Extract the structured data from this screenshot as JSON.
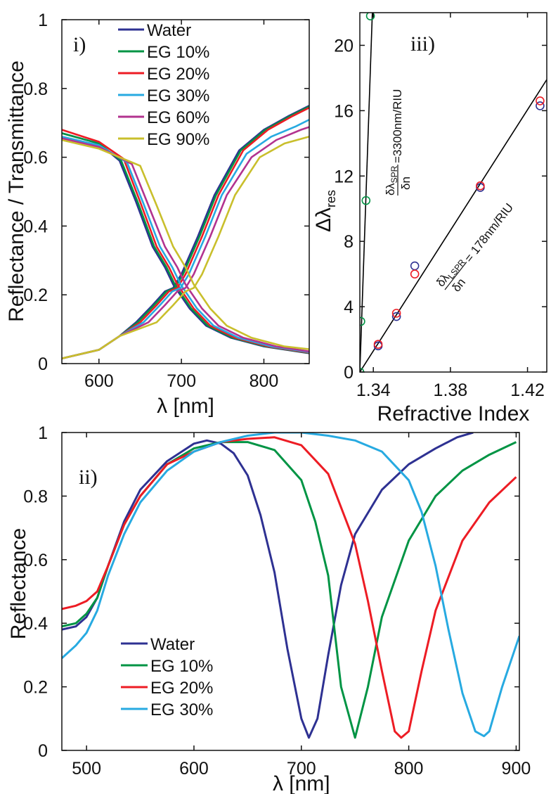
{
  "chart_data": [
    {
      "type": "line",
      "panel_label": "i)",
      "xlabel": "λ [nm]",
      "ylabel": "Reflectance / Transmittance",
      "xlim": [
        555,
        855
      ],
      "ylim": [
        0,
        1
      ],
      "xticks": [
        600,
        700,
        800
      ],
      "yticks": [
        0,
        0.2,
        0.4,
        0.6,
        0.8,
        1
      ],
      "ytick_labels": [
        "0",
        "0.2",
        "0.4",
        "0.6",
        "0.8",
        "1"
      ],
      "legend_position": "top-center",
      "series": [
        {
          "name": "Water",
          "color": "#2e3192",
          "shift": 0,
          "reflectance": [
            [
              555,
              0.67
            ],
            [
              600,
              0.64
            ],
            [
              625,
              0.59
            ],
            [
              645,
              0.47
            ],
            [
              665,
              0.34
            ],
            [
              680,
              0.28
            ],
            [
              690,
              0.23
            ],
            [
              710,
              0.16
            ],
            [
              730,
              0.11
            ],
            [
              760,
              0.075
            ],
            [
              800,
              0.05
            ],
            [
              855,
              0.03
            ]
          ],
          "transmittance": [
            [
              555,
              0.015
            ],
            [
              600,
              0.04
            ],
            [
              625,
              0.08
            ],
            [
              645,
              0.12
            ],
            [
              665,
              0.17
            ],
            [
              680,
              0.21
            ],
            [
              690,
              0.22
            ],
            [
              700,
              0.26
            ],
            [
              720,
              0.37
            ],
            [
              740,
              0.49
            ],
            [
              770,
              0.62
            ],
            [
              800,
              0.68
            ],
            [
              830,
              0.72
            ],
            [
              855,
              0.75
            ]
          ]
        },
        {
          "name": "EG 10%",
          "color": "#009444",
          "shift": 2,
          "reflectance": [
            [
              555,
              0.67
            ],
            [
              600,
              0.64
            ],
            [
              625,
              0.59
            ],
            [
              645,
              0.47
            ],
            [
              665,
              0.34
            ],
            [
              680,
              0.28
            ],
            [
              690,
              0.23
            ],
            [
              710,
              0.16
            ],
            [
              730,
              0.11
            ],
            [
              760,
              0.075
            ],
            [
              800,
              0.05
            ],
            [
              855,
              0.03
            ]
          ],
          "transmittance": [
            [
              555,
              0.015
            ],
            [
              600,
              0.04
            ],
            [
              625,
              0.08
            ],
            [
              645,
              0.12
            ],
            [
              665,
              0.17
            ],
            [
              680,
              0.21
            ],
            [
              690,
              0.22
            ],
            [
              700,
              0.26
            ],
            [
              720,
              0.37
            ],
            [
              740,
              0.49
            ],
            [
              770,
              0.62
            ],
            [
              800,
              0.68
            ],
            [
              830,
              0.72
            ],
            [
              855,
              0.75
            ]
          ]
        },
        {
          "name": "EG 20%",
          "color": "#ed1c24",
          "shift": 5,
          "reflectance": [
            [
              555,
              0.68
            ],
            [
              600,
              0.645
            ],
            [
              625,
              0.595
            ],
            [
              645,
              0.47
            ],
            [
              665,
              0.34
            ],
            [
              680,
              0.28
            ],
            [
              690,
              0.23
            ],
            [
              710,
              0.16
            ],
            [
              730,
              0.11
            ],
            [
              760,
              0.075
            ],
            [
              800,
              0.05
            ],
            [
              855,
              0.03
            ]
          ],
          "transmittance": [
            [
              555,
              0.015
            ],
            [
              600,
              0.04
            ],
            [
              625,
              0.08
            ],
            [
              645,
              0.12
            ],
            [
              665,
              0.17
            ],
            [
              680,
              0.21
            ],
            [
              690,
              0.22
            ],
            [
              700,
              0.26
            ],
            [
              720,
              0.37
            ],
            [
              740,
              0.49
            ],
            [
              770,
              0.62
            ],
            [
              800,
              0.68
            ],
            [
              830,
              0.72
            ],
            [
              855,
              0.75
            ]
          ]
        },
        {
          "name": "EG 30%",
          "color": "#27aae1",
          "shift": 9,
          "reflectance": [
            [
              555,
              0.66
            ],
            [
              600,
              0.635
            ],
            [
              625,
              0.585
            ],
            [
              645,
              0.465
            ],
            [
              665,
              0.34
            ],
            [
              680,
              0.28
            ],
            [
              690,
              0.23
            ],
            [
              710,
              0.16
            ],
            [
              730,
              0.11
            ],
            [
              760,
              0.075
            ],
            [
              800,
              0.05
            ],
            [
              855,
              0.03
            ]
          ],
          "transmittance": [
            [
              555,
              0.015
            ],
            [
              600,
              0.04
            ],
            [
              625,
              0.08
            ],
            [
              645,
              0.12
            ],
            [
              665,
              0.17
            ],
            [
              680,
              0.21
            ],
            [
              690,
              0.22
            ],
            [
              700,
              0.26
            ],
            [
              720,
              0.37
            ],
            [
              740,
              0.49
            ],
            [
              770,
              0.61
            ],
            [
              800,
              0.66
            ],
            [
              830,
              0.69
            ],
            [
              855,
              0.72
            ]
          ]
        },
        {
          "name": "EG 60%",
          "color": "#b2338f",
          "shift": 15,
          "reflectance": [
            [
              555,
              0.655
            ],
            [
              600,
              0.63
            ],
            [
              625,
              0.58
            ],
            [
              645,
              0.46
            ],
            [
              665,
              0.34
            ],
            [
              680,
              0.28
            ],
            [
              690,
              0.23
            ],
            [
              710,
              0.16
            ],
            [
              730,
              0.11
            ],
            [
              760,
              0.075
            ],
            [
              800,
              0.05
            ],
            [
              855,
              0.03
            ]
          ],
          "transmittance": [
            [
              555,
              0.015
            ],
            [
              600,
              0.04
            ],
            [
              625,
              0.08
            ],
            [
              645,
              0.12
            ],
            [
              665,
              0.17
            ],
            [
              680,
              0.21
            ],
            [
              690,
              0.22
            ],
            [
              700,
              0.26
            ],
            [
              720,
              0.37
            ],
            [
              740,
              0.49
            ],
            [
              770,
              0.6
            ],
            [
              800,
              0.65
            ],
            [
              830,
              0.68
            ],
            [
              855,
              0.7
            ]
          ]
        },
        {
          "name": "EG 90%",
          "color": "#c9bf2c",
          "shift": 25,
          "reflectance": [
            [
              555,
              0.65
            ],
            [
              600,
              0.625
            ],
            [
              625,
              0.575
            ],
            [
              645,
              0.46
            ],
            [
              665,
              0.34
            ],
            [
              680,
              0.28
            ],
            [
              690,
              0.23
            ],
            [
              710,
              0.16
            ],
            [
              730,
              0.11
            ],
            [
              760,
              0.075
            ],
            [
              800,
              0.05
            ],
            [
              855,
              0.035
            ]
          ],
          "transmittance": [
            [
              555,
              0.015
            ],
            [
              600,
              0.04
            ],
            [
              625,
              0.08
            ],
            [
              645,
              0.12
            ],
            [
              665,
              0.17
            ],
            [
              680,
              0.21
            ],
            [
              690,
              0.22
            ],
            [
              700,
              0.26
            ],
            [
              720,
              0.37
            ],
            [
              740,
              0.49
            ],
            [
              770,
              0.6
            ],
            [
              800,
              0.64
            ],
            [
              830,
              0.66
            ],
            [
              855,
              0.68
            ]
          ]
        }
      ]
    },
    {
      "type": "scatter",
      "panel_label": "iii)",
      "xlabel": "Refractive Index",
      "ylabel_main": "Δλ",
      "ylabel_sub": "res",
      "xlim": [
        1.333,
        1.43
      ],
      "ylim": [
        0,
        22
      ],
      "xticks": [
        1.34,
        1.38,
        1.42
      ],
      "yticks": [
        0,
        4,
        8,
        12,
        16,
        20
      ],
      "ytick_labels": [
        "0",
        "4",
        "8",
        "12",
        "16",
        "20"
      ],
      "annotations": [
        {
          "top": "δλ",
          "top_sub": "SPR",
          "bottom": "δn",
          "suffix": "=3300nm/RIU"
        },
        {
          "top": "δλ",
          "top_sub": "LSPR",
          "bottom": "δn",
          "suffix": "= 178nm/RIU"
        }
      ],
      "fit_lines": [
        {
          "color": "#000000",
          "points": [
            [
              1.333,
              0
            ],
            [
              1.3395,
              22
            ]
          ]
        },
        {
          "color": "#000000",
          "points": [
            [
              1.333,
              0
            ],
            [
              1.43,
              17.9
            ]
          ]
        }
      ],
      "series": [
        {
          "color": "#009444",
          "points": [
            [
              1.333,
              0
            ],
            [
              1.3335,
              3.1
            ],
            [
              1.3362,
              10.5
            ],
            [
              1.3385,
              21.8
            ]
          ]
        },
        {
          "color": "#2e3192",
          "points": [
            [
              1.3425,
              1.6
            ],
            [
              1.352,
              3.4
            ],
            [
              1.3615,
              6.5
            ],
            [
              1.3955,
              11.3
            ],
            [
              1.4265,
              16.3
            ]
          ]
        },
        {
          "color": "#ed1c24",
          "points": [
            [
              1.3425,
              1.7
            ],
            [
              1.352,
              3.6
            ],
            [
              1.3615,
              6.0
            ],
            [
              1.3955,
              11.4
            ],
            [
              1.4265,
              16.6
            ]
          ]
        }
      ]
    },
    {
      "type": "line",
      "panel_label": "ii)",
      "xlabel": "λ [nm]",
      "ylabel": "Reflectance",
      "xlim": [
        477,
        903
      ],
      "ylim": [
        0,
        1
      ],
      "xticks": [
        500,
        600,
        700,
        800,
        900
      ],
      "yticks": [
        0,
        0.2,
        0.4,
        0.6,
        0.8,
        1
      ],
      "ytick_labels": [
        "0",
        "0.2",
        "0.4",
        "0.6",
        "0.8",
        "1"
      ],
      "legend_position": "bottom-left",
      "series": [
        {
          "name": "Water",
          "color": "#2e3192",
          "x": [
            477,
            490,
            500,
            510,
            520,
            535,
            550,
            575,
            600,
            612,
            625,
            637,
            650,
            662,
            675,
            687,
            700,
            707,
            715,
            725,
            737,
            750,
            775,
            800,
            825,
            845,
            860
          ],
          "y": [
            0.38,
            0.39,
            0.42,
            0.48,
            0.58,
            0.72,
            0.82,
            0.91,
            0.965,
            0.975,
            0.965,
            0.935,
            0.865,
            0.74,
            0.56,
            0.32,
            0.1,
            0.04,
            0.1,
            0.3,
            0.52,
            0.68,
            0.82,
            0.9,
            0.95,
            0.985,
            1.0
          ]
        },
        {
          "name": "EG 10%",
          "color": "#009444",
          "x": [
            477,
            490,
            500,
            510,
            520,
            535,
            550,
            575,
            600,
            625,
            650,
            675,
            700,
            713,
            725,
            737,
            750,
            762,
            775,
            800,
            825,
            850,
            875,
            900
          ],
          "y": [
            0.39,
            0.4,
            0.43,
            0.48,
            0.58,
            0.71,
            0.8,
            0.9,
            0.95,
            0.97,
            0.97,
            0.945,
            0.85,
            0.72,
            0.55,
            0.2,
            0.04,
            0.2,
            0.42,
            0.66,
            0.8,
            0.88,
            0.93,
            0.97
          ]
        },
        {
          "name": "EG 20%",
          "color": "#ed1c24",
          "x": [
            477,
            490,
            500,
            510,
            520,
            535,
            550,
            575,
            600,
            625,
            650,
            675,
            700,
            725,
            750,
            762,
            775,
            787,
            793,
            800,
            812,
            825,
            850,
            875,
            900
          ],
          "y": [
            0.445,
            0.455,
            0.47,
            0.5,
            0.58,
            0.71,
            0.8,
            0.9,
            0.94,
            0.97,
            0.98,
            0.985,
            0.96,
            0.87,
            0.65,
            0.47,
            0.25,
            0.06,
            0.04,
            0.06,
            0.25,
            0.44,
            0.66,
            0.78,
            0.86
          ]
        },
        {
          "name": "EG 30%",
          "color": "#27aae1",
          "x": [
            477,
            490,
            500,
            510,
            520,
            535,
            550,
            575,
            600,
            625,
            650,
            675,
            700,
            725,
            750,
            775,
            800,
            812,
            825,
            837,
            850,
            862,
            870,
            875,
            887,
            900,
            903
          ],
          "y": [
            0.29,
            0.33,
            0.37,
            0.44,
            0.55,
            0.68,
            0.78,
            0.88,
            0.94,
            0.97,
            0.99,
            1.0,
            1.0,
            0.99,
            0.975,
            0.94,
            0.85,
            0.75,
            0.58,
            0.38,
            0.18,
            0.06,
            0.045,
            0.06,
            0.2,
            0.33,
            0.36
          ]
        }
      ]
    }
  ]
}
